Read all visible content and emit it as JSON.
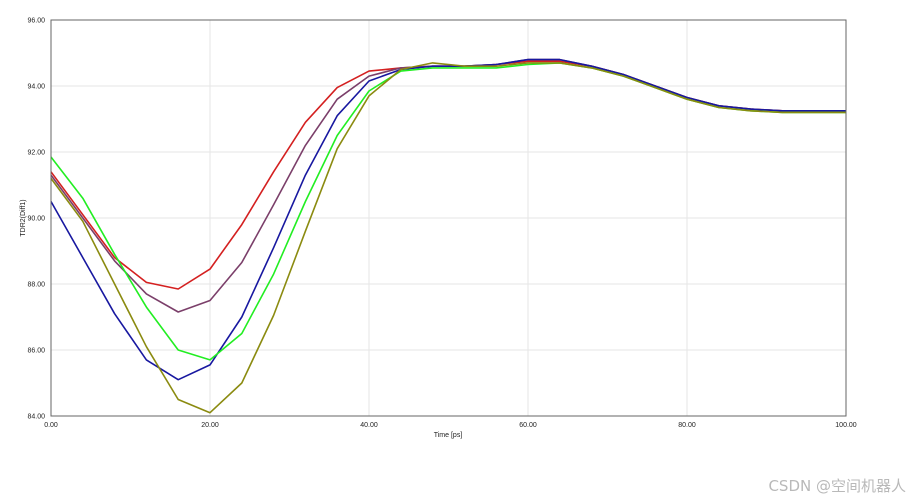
{
  "chart_data": {
    "type": "line",
    "xlabel": "Time [ps]",
    "ylabel": "TDR2(Diff1)",
    "xlim": [
      0,
      100
    ],
    "ylim": [
      84,
      96
    ],
    "x_ticks": [
      0,
      20,
      40,
      60,
      80,
      100
    ],
    "x_tick_labels": [
      "0.00",
      "20.00",
      "40.00",
      "60.00",
      "80.00",
      "100.00"
    ],
    "y_ticks": [
      84,
      86,
      88,
      90,
      92,
      94,
      96
    ],
    "y_tick_labels": [
      "84.00",
      "86.00",
      "88.00",
      "90.00",
      "92.00",
      "94.00",
      "96.00"
    ],
    "grid": true,
    "x": [
      0,
      4,
      8,
      12,
      16,
      20,
      24,
      28,
      32,
      36,
      40,
      44,
      48,
      52,
      56,
      60,
      64,
      68,
      72,
      76,
      80,
      84,
      88,
      92,
      96,
      100
    ],
    "series": [
      {
        "color": "#d42020",
        "values": [
          91.4,
          90.1,
          88.8,
          88.05,
          87.85,
          88.45,
          89.8,
          91.4,
          92.9,
          93.95,
          94.45,
          94.55,
          94.6,
          94.6,
          94.65,
          94.75,
          94.75,
          94.6,
          94.35,
          94.0,
          93.65,
          93.4,
          93.3,
          93.25,
          93.25,
          93.25
        ]
      },
      {
        "color": "#7b3f6a",
        "values": [
          91.3,
          90.0,
          88.7,
          87.7,
          87.15,
          87.5,
          88.65,
          90.4,
          92.2,
          93.6,
          94.3,
          94.55,
          94.6,
          94.6,
          94.65,
          94.8,
          94.8,
          94.6,
          94.35,
          94.0,
          93.65,
          93.4,
          93.3,
          93.25,
          93.25,
          93.25
        ]
      },
      {
        "color": "#1818a0",
        "values": [
          90.5,
          88.8,
          87.1,
          85.7,
          85.1,
          85.55,
          87.0,
          89.1,
          91.3,
          93.1,
          94.15,
          94.5,
          94.6,
          94.6,
          94.65,
          94.8,
          94.8,
          94.6,
          94.35,
          94.0,
          93.65,
          93.4,
          93.3,
          93.25,
          93.25,
          93.25
        ]
      },
      {
        "color": "#22ee22",
        "values": [
          91.85,
          90.6,
          88.9,
          87.3,
          86.0,
          85.7,
          86.5,
          88.3,
          90.5,
          92.5,
          93.85,
          94.45,
          94.55,
          94.55,
          94.55,
          94.65,
          94.7,
          94.55,
          94.3,
          93.95,
          93.6,
          93.35,
          93.25,
          93.2,
          93.2,
          93.2
        ]
      },
      {
        "color": "#8b8b10",
        "values": [
          91.2,
          89.9,
          88.0,
          86.1,
          84.5,
          84.1,
          85.0,
          87.05,
          89.6,
          92.1,
          93.7,
          94.5,
          94.7,
          94.6,
          94.6,
          94.7,
          94.7,
          94.55,
          94.3,
          93.95,
          93.6,
          93.35,
          93.25,
          93.2,
          93.2,
          93.2
        ]
      }
    ]
  },
  "watermark": "CSDN @空间机器人"
}
